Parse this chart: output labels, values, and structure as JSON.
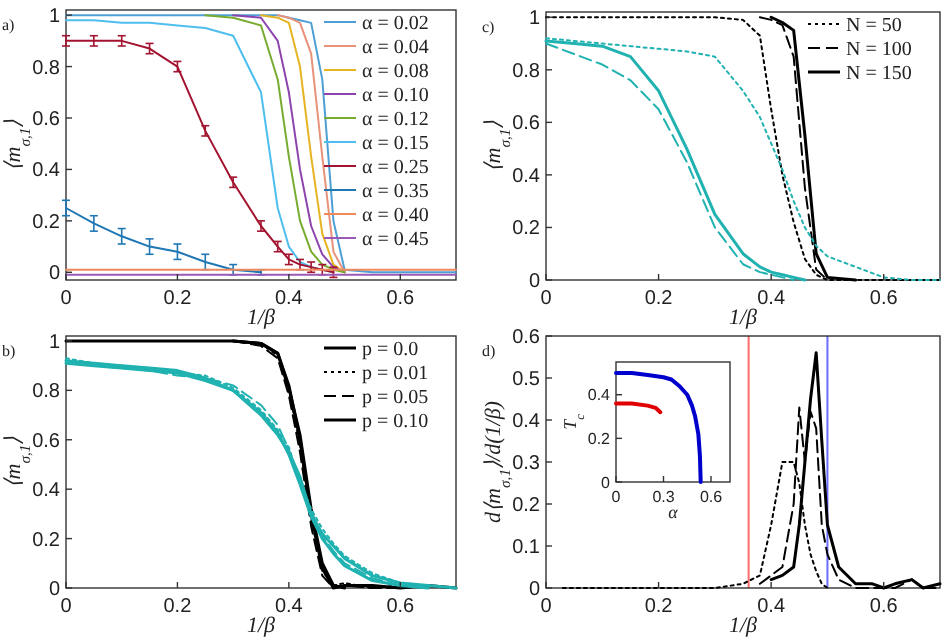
{
  "chart_data": [
    {
      "type": "line",
      "xlabel": "1/β",
      "ylabel": "⟨m$_{σ,1}$⟩",
      "annotations": [
        "a)"
      ],
      "legend": "top right",
      "xlim": [
        0,
        0.7
      ],
      "xticks": [
        0,
        0.2,
        0.4,
        0.6
      ],
      "ylim": [
        -0.03,
        1.02
      ],
      "yticks": [
        0,
        0.2,
        0.4,
        0.6,
        0.8,
        1
      ],
      "x": [
        0,
        0.05,
        0.1,
        0.15,
        0.2,
        0.25,
        0.3,
        0.35,
        0.38,
        0.4,
        0.42,
        0.44,
        0.46,
        0.48,
        0.5,
        0.55,
        0.6,
        0.65,
        0.7
      ],
      "series": [
        {
          "name": "α = 0.02",
          "color": "#4d9fd6",
          "values": [
            1,
            1,
            1,
            1,
            1,
            1,
            1,
            1,
            1,
            0.99,
            0.98,
            0.97,
            0.75,
            0.2,
            0.01,
            0,
            0,
            0,
            0
          ]
        },
        {
          "name": "α = 0.04",
          "color": "#e8927a",
          "values": [
            null,
            null,
            null,
            null,
            null,
            null,
            null,
            null,
            1,
            0.99,
            0.97,
            0.85,
            0.45,
            0.08,
            0,
            null,
            null,
            null,
            null
          ]
        },
        {
          "name": "α = 0.08",
          "color": "#e6b422",
          "values": [
            null,
            null,
            null,
            null,
            null,
            null,
            null,
            1,
            0.99,
            0.97,
            0.8,
            0.45,
            0.15,
            0.03,
            0,
            null,
            null,
            null,
            null
          ]
        },
        {
          "name": "α = 0.10",
          "color": "#8e44ad",
          "values": [
            null,
            null,
            null,
            null,
            null,
            null,
            1,
            0.99,
            0.9,
            0.7,
            0.4,
            0.18,
            0.07,
            0.02,
            0,
            null,
            null,
            null,
            null
          ]
        },
        {
          "name": "α = 0.12",
          "color": "#77ac30",
          "values": [
            null,
            null,
            null,
            null,
            null,
            1,
            0.99,
            0.96,
            0.75,
            0.45,
            0.2,
            0.08,
            0.03,
            0.01,
            0,
            null,
            null,
            null,
            null
          ]
        },
        {
          "name": "α = 0.15",
          "color": "#4dbeee",
          "values": [
            0.98,
            0.98,
            0.97,
            0.97,
            0.96,
            0.95,
            0.92,
            0.7,
            0.25,
            0.1,
            0.04,
            0.02,
            0.01,
            0,
            null,
            null,
            null,
            null,
            null
          ]
        },
        {
          "name": "α = 0.25",
          "color": "#a2142f",
          "values": [
            0.9,
            0.9,
            0.9,
            0.87,
            0.8,
            0.55,
            0.35,
            0.18,
            0.1,
            0.05,
            0.03,
            0.02,
            0.01,
            0,
            null,
            null,
            null,
            null,
            null
          ],
          "errors": [
            0.02,
            0.02,
            0.02,
            0.02,
            0.02,
            0.02,
            0.02,
            0.02,
            0.02,
            0.02,
            0.02,
            0.02,
            0.02,
            0.02,
            null,
            null,
            null,
            null,
            null
          ]
        },
        {
          "name": "α = 0.35",
          "color": "#1f77b4",
          "values": [
            0.25,
            0.19,
            0.14,
            0.1,
            0.08,
            0.04,
            0.01,
            0,
            null,
            null,
            null,
            null,
            null,
            null,
            null,
            null,
            null,
            null,
            null
          ],
          "errors": [
            0.03,
            0.03,
            0.03,
            0.03,
            0.03,
            0.03,
            0.02,
            0.01,
            null,
            null,
            null,
            null,
            null,
            null,
            null,
            null,
            null,
            null,
            null
          ]
        },
        {
          "name": "α = 0.40",
          "color": "#f08a5d",
          "values": [
            0.01,
            0.01,
            0.01,
            0.01,
            0.01,
            0.01,
            0.01,
            0.01,
            0.01,
            0.01,
            0.01,
            0.01,
            0.01,
            0.01,
            0.01,
            0.01,
            0.01,
            0.01,
            0.01
          ]
        },
        {
          "name": "α = 0.45",
          "color": "#9b59b6",
          "values": [
            -0.01,
            -0.01,
            -0.01,
            -0.01,
            -0.01,
            -0.01,
            -0.01,
            -0.01,
            -0.01,
            -0.01,
            -0.01,
            -0.01,
            -0.01,
            -0.01,
            -0.01,
            -0.01,
            -0.01,
            -0.01,
            -0.01
          ]
        }
      ]
    },
    {
      "type": "line",
      "xlabel": "1/β",
      "ylabel": "⟨m$_{σ,1}$⟩",
      "annotations": [
        "c)"
      ],
      "legend": "top right",
      "xlim": [
        0,
        0.7
      ],
      "xticks": [
        0,
        0.2,
        0.4,
        0.6
      ],
      "ylim": [
        0,
        1.02
      ],
      "yticks": [
        0,
        0.2,
        0.4,
        0.6,
        0.8,
        1
      ],
      "x": [
        0,
        0.05,
        0.1,
        0.15,
        0.2,
        0.25,
        0.3,
        0.35,
        0.38,
        0.4,
        0.42,
        0.44,
        0.46,
        0.48,
        0.5,
        0.55,
        0.6,
        0.65,
        0.7
      ],
      "series": [
        {
          "name": "N = 50",
          "color": "#000000",
          "line_style": "dotted",
          "values": [
            1,
            1,
            1,
            1,
            1,
            1,
            1,
            0.99,
            0.93,
            0.65,
            0.4,
            0.22,
            0.08,
            0.02,
            0,
            0,
            0,
            0,
            0
          ]
        },
        {
          "name": "N = 100",
          "color": "#000000",
          "line_style": "dashed",
          "values": [
            null,
            null,
            null,
            null,
            null,
            null,
            null,
            null,
            1,
            0.99,
            0.97,
            0.85,
            0.35,
            0.04,
            0,
            null,
            null,
            null,
            null
          ]
        },
        {
          "name": "N = 150",
          "color": "#000000",
          "line_style": "solid",
          "values": [
            null,
            null,
            null,
            null,
            null,
            null,
            null,
            null,
            null,
            1,
            0.98,
            0.95,
            0.55,
            0.1,
            0.01,
            0,
            null,
            null,
            null
          ]
        },
        {
          "color": "#20b2b0",
          "line_style": "dotted",
          "values": [
            0.92,
            0.91,
            0.9,
            0.89,
            0.88,
            0.87,
            0.85,
            0.72,
            0.62,
            0.52,
            0.42,
            0.3,
            0.2,
            0.13,
            0.09,
            0.05,
            0.01,
            0,
            0
          ]
        },
        {
          "color": "#20b2b0",
          "line_style": "dashed",
          "values": [
            0.9,
            0.86,
            0.82,
            0.76,
            0.65,
            0.45,
            0.2,
            0.06,
            0.03,
            0.02,
            0.01,
            0,
            null,
            null,
            null,
            null,
            null,
            null,
            null
          ]
        },
        {
          "color": "#20b2b0",
          "line_style": "solid",
          "values": [
            0.91,
            0.9,
            0.89,
            0.85,
            0.72,
            0.5,
            0.25,
            0.1,
            0.05,
            0.03,
            0.02,
            0.01,
            0,
            null,
            null,
            null,
            null,
            null,
            null
          ]
        }
      ]
    },
    {
      "type": "line",
      "xlabel": "1/β",
      "ylabel": "⟨m$_{σ,1}$⟩",
      "annotations": [
        "b)"
      ],
      "legend": "top right",
      "xlim": [
        0,
        0.7
      ],
      "xticks": [
        0,
        0.2,
        0.4,
        0.6
      ],
      "ylim": [
        0,
        1.02
      ],
      "yticks": [
        0,
        0.2,
        0.4,
        0.6,
        0.8,
        1
      ],
      "x": [
        0,
        0.05,
        0.1,
        0.15,
        0.2,
        0.25,
        0.3,
        0.35,
        0.38,
        0.4,
        0.42,
        0.44,
        0.46,
        0.48,
        0.5,
        0.55,
        0.6,
        0.65,
        0.7
      ],
      "series": [
        {
          "name": "p = 0.0",
          "color": "#000000",
          "line_style": "solid",
          "values": [
            1,
            1,
            1,
            1,
            1,
            1,
            1,
            0.99,
            0.95,
            0.82,
            0.6,
            0.3,
            0.08,
            0,
            0.01,
            0.01,
            0,
            0.01,
            0
          ]
        },
        {
          "name": "p = 0.01",
          "color": "#000000",
          "line_style": "dotted",
          "values": [
            null,
            null,
            null,
            null,
            null,
            null,
            1,
            0.99,
            0.94,
            0.8,
            0.58,
            0.28,
            0.07,
            0.01,
            0.02,
            0,
            0.01,
            0,
            null
          ]
        },
        {
          "name": "p = 0.05",
          "color": "#000000",
          "line_style": "dashed",
          "values": [
            null,
            null,
            null,
            null,
            null,
            null,
            1,
            0.98,
            0.93,
            0.78,
            0.55,
            0.25,
            0.05,
            0,
            0.01,
            0,
            0,
            0.01,
            null
          ]
        },
        {
          "name": "p = 0.10",
          "color": "#000000",
          "line_style": "solid",
          "values": [
            null,
            null,
            null,
            null,
            null,
            null,
            1,
            0.99,
            0.95,
            0.81,
            0.62,
            0.32,
            0.1,
            0.01,
            0,
            null,
            null,
            null,
            null
          ]
        },
        {
          "color": "#20b2b0",
          "line_style": "solid",
          "values": [
            0.92,
            0.91,
            0.9,
            0.89,
            0.88,
            0.85,
            0.8,
            0.7,
            0.62,
            0.55,
            0.45,
            0.3,
            0.22,
            0.17,
            0.12,
            0.05,
            0.02,
            0.01,
            0
          ]
        },
        {
          "color": "#20b2b0",
          "line_style": "dotted",
          "values": [
            0.93,
            0.91,
            0.9,
            0.89,
            0.87,
            0.86,
            0.81,
            0.72,
            0.64,
            0.57,
            0.43,
            0.32,
            0.24,
            0.18,
            0.13,
            0.06,
            0.02,
            0.01,
            null
          ]
        },
        {
          "color": "#20b2b0",
          "line_style": "dashed",
          "values": [
            0.92,
            0.9,
            0.89,
            0.88,
            0.86,
            0.85,
            0.82,
            0.74,
            0.66,
            0.56,
            0.44,
            0.31,
            0.21,
            0.15,
            0.1,
            0.04,
            0.01,
            null,
            null
          ]
        },
        {
          "color": "#20b2b0",
          "line_style": "solid",
          "values": [
            0.91,
            0.9,
            0.89,
            0.88,
            0.87,
            0.84,
            0.8,
            0.71,
            0.63,
            0.54,
            0.42,
            0.29,
            0.2,
            0.14,
            0.09,
            0.03,
            0.01,
            0,
            null
          ]
        }
      ]
    },
    {
      "type": "line",
      "xlabel": "1/β",
      "ylabel": "d⟨m$_{σ,1}$⟩/d(1/β)",
      "annotations": [
        "d)"
      ],
      "xlim": [
        0,
        0.7
      ],
      "xticks": [
        0,
        0.2,
        0.4,
        0.6
      ],
      "ylim": [
        0,
        0.6
      ],
      "yticks": [
        0,
        0.1,
        0.2,
        0.3,
        0.4,
        0.5,
        0.6
      ],
      "ref_lines": [
        {
          "axis": "x",
          "value": 0.36,
          "color": "#ff6b6b"
        },
        {
          "axis": "x",
          "value": 0.5,
          "color": "#6b6bff"
        }
      ],
      "x": [
        0.03,
        0.1,
        0.2,
        0.3,
        0.35,
        0.38,
        0.4,
        0.42,
        0.44,
        0.45,
        0.46,
        0.47,
        0.48,
        0.49,
        0.5,
        0.52,
        0.55,
        0.58,
        0.6,
        0.62,
        0.65,
        0.67,
        0.7
      ],
      "series": [
        {
          "color": "#000000",
          "line_style": "dotted",
          "values": [
            0,
            0,
            0,
            0,
            0.01,
            0.03,
            0.15,
            0.3,
            0.3,
            0.25,
            0.15,
            0.08,
            0.04,
            0.01,
            0,
            null,
            null,
            null,
            null,
            null,
            null,
            null,
            null
          ]
        },
        {
          "color": "#000000",
          "line_style": "dashed",
          "values": [
            null,
            null,
            null,
            null,
            null,
            0.01,
            0.03,
            0.05,
            0.2,
            0.43,
            0.3,
            0.42,
            0.38,
            0.15,
            0.08,
            0.02,
            0,
            0,
            0,
            0,
            0.02,
            0,
            0
          ]
        },
        {
          "color": "#000000",
          "line_style": "solid",
          "values": [
            null,
            null,
            null,
            null,
            null,
            null,
            0.02,
            0.03,
            0.05,
            0.15,
            0.3,
            0.45,
            0.56,
            0.35,
            0.15,
            0.05,
            0.01,
            0.01,
            0,
            0.01,
            0.02,
            0,
            0.01
          ]
        }
      ]
    },
    {
      "type": "line",
      "xlabel": "α",
      "ylabel": "T$_{c}$",
      "xlim": [
        0,
        0.72
      ],
      "xticks": [
        0,
        0.3,
        0.6
      ],
      "ylim": [
        0,
        0.55
      ],
      "yticks": [
        0,
        0.2,
        0.4
      ],
      "series": [
        {
          "color": "#0000cc",
          "x": [
            0,
            0.1,
            0.2,
            0.3,
            0.35,
            0.4,
            0.45,
            0.48,
            0.5,
            0.52,
            0.53,
            0.535
          ],
          "values": [
            0.5,
            0.5,
            0.49,
            0.48,
            0.47,
            0.44,
            0.4,
            0.35,
            0.3,
            0.22,
            0.12,
            0
          ]
        },
        {
          "color": "#e00000",
          "x": [
            0,
            0.1,
            0.2,
            0.25,
            0.28
          ],
          "values": [
            0.36,
            0.36,
            0.35,
            0.34,
            0.32
          ]
        }
      ]
    }
  ]
}
